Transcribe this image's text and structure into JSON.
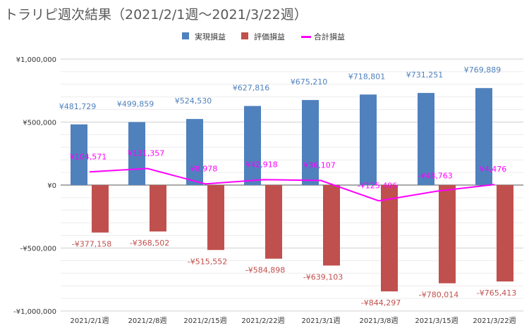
{
  "chart_data": {
    "type": "bar",
    "title": "トラリピ週次結果（2021/2/1週～2021/3/22週）",
    "categories": [
      "2021/2/1週",
      "2021/2/8週",
      "2021/2/15週",
      "2021/2/22週",
      "2021/3/1週",
      "2021/3/8週",
      "2021/3/15週",
      "2021/3/22週"
    ],
    "series": [
      {
        "name": "実現損益",
        "kind": "bar",
        "color": "#4f81bd",
        "values": [
          481729,
          499859,
          524530,
          627816,
          675210,
          718801,
          731251,
          769889
        ],
        "labels": [
          "¥481,729",
          "¥499,859",
          "¥524,530",
          "¥627,816",
          "¥675,210",
          "¥718,801",
          "¥731,251",
          "¥769,889"
        ]
      },
      {
        "name": "評価損益",
        "kind": "bar",
        "color": "#c0504d",
        "values": [
          -377158,
          -368502,
          -515552,
          -584898,
          -639103,
          -844297,
          -780014,
          -765413
        ],
        "labels": [
          "-¥377,158",
          "-¥368,502",
          "-¥515,552",
          "-¥584,898",
          "-¥639,103",
          "-¥844,297",
          "-¥780,014",
          "-¥765,413"
        ]
      },
      {
        "name": "合計損益",
        "kind": "line",
        "color": "#ff00ff",
        "values": [
          104571,
          131357,
          8978,
          42918,
          36107,
          -125496,
          -48763,
          4476
        ],
        "labels": [
          "¥104,571",
          "¥131,357",
          "¥8,978",
          "¥42,918",
          "¥36,107",
          "-¥125,496",
          "-¥48,763",
          "¥4,476"
        ]
      }
    ],
    "ylim": [
      -1000000,
      1000000
    ],
    "yticks": [
      -1000000,
      -500000,
      0,
      500000,
      1000000
    ],
    "ytick_labels": [
      "-¥1,000,000",
      "-¥500,000",
      "¥0",
      "¥500,000",
      "¥1,000,000"
    ],
    "grid": true,
    "legend_position": "top"
  }
}
